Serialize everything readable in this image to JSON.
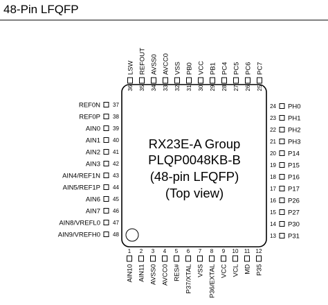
{
  "heading": "48-Pin LFQFP",
  "chip": {
    "lines": [
      "RX23E-A Group",
      "PLQP0048KB-B",
      "(48-pin LFQFP)",
      "(Top view)"
    ]
  },
  "pins": {
    "top": [
      {
        "num": "36",
        "name": "LSW"
      },
      {
        "num": "35",
        "name": "REFOUT"
      },
      {
        "num": "34",
        "name": "AVSS0"
      },
      {
        "num": "33",
        "name": "AVCC0"
      },
      {
        "num": "32",
        "name": "VSS"
      },
      {
        "num": "31",
        "name": "PB0"
      },
      {
        "num": "30",
        "name": "VCC"
      },
      {
        "num": "29",
        "name": "PB1"
      },
      {
        "num": "28",
        "name": "PC4"
      },
      {
        "num": "27",
        "name": "PC5"
      },
      {
        "num": "26",
        "name": "PC6"
      },
      {
        "num": "25",
        "name": "PC7"
      }
    ],
    "left": [
      {
        "num": "37",
        "name": "REF0N"
      },
      {
        "num": "38",
        "name": "REF0P"
      },
      {
        "num": "39",
        "name": "AIN0"
      },
      {
        "num": "40",
        "name": "AIN1"
      },
      {
        "num": "41",
        "name": "AIN2"
      },
      {
        "num": "42",
        "name": "AIN3"
      },
      {
        "num": "43",
        "name": "AIN4/REF1N"
      },
      {
        "num": "44",
        "name": "AIN5/REF1P"
      },
      {
        "num": "45",
        "name": "AIN6"
      },
      {
        "num": "46",
        "name": "AIN7"
      },
      {
        "num": "47",
        "name": "AIN8/VREFL0"
      },
      {
        "num": "48",
        "name": "AIN9/VREFH0"
      }
    ],
    "right": [
      {
        "num": "24",
        "name": "PH0"
      },
      {
        "num": "23",
        "name": "PH1"
      },
      {
        "num": "22",
        "name": "PH2"
      },
      {
        "num": "21",
        "name": "PH3"
      },
      {
        "num": "20",
        "name": "P14"
      },
      {
        "num": "19",
        "name": "P15"
      },
      {
        "num": "18",
        "name": "P16"
      },
      {
        "num": "17",
        "name": "P17"
      },
      {
        "num": "16",
        "name": "P26"
      },
      {
        "num": "15",
        "name": "P27"
      },
      {
        "num": "14",
        "name": "P30"
      },
      {
        "num": "13",
        "name": "P31"
      }
    ],
    "bottom": [
      {
        "num": "1",
        "name": "AIN10"
      },
      {
        "num": "2",
        "name": "AIN11"
      },
      {
        "num": "3",
        "name": "AVSS0"
      },
      {
        "num": "4",
        "name": "AVCC0"
      },
      {
        "num": "5",
        "name": "RES#"
      },
      {
        "num": "6",
        "name": "P37/XTAL"
      },
      {
        "num": "7",
        "name": "VSS"
      },
      {
        "num": "8",
        "name": "P36/EXTAL"
      },
      {
        "num": "9",
        "name": "VCC"
      },
      {
        "num": "10",
        "name": "VCL"
      },
      {
        "num": "11",
        "name": "MD"
      },
      {
        "num": "12",
        "name": "P35"
      }
    ]
  }
}
